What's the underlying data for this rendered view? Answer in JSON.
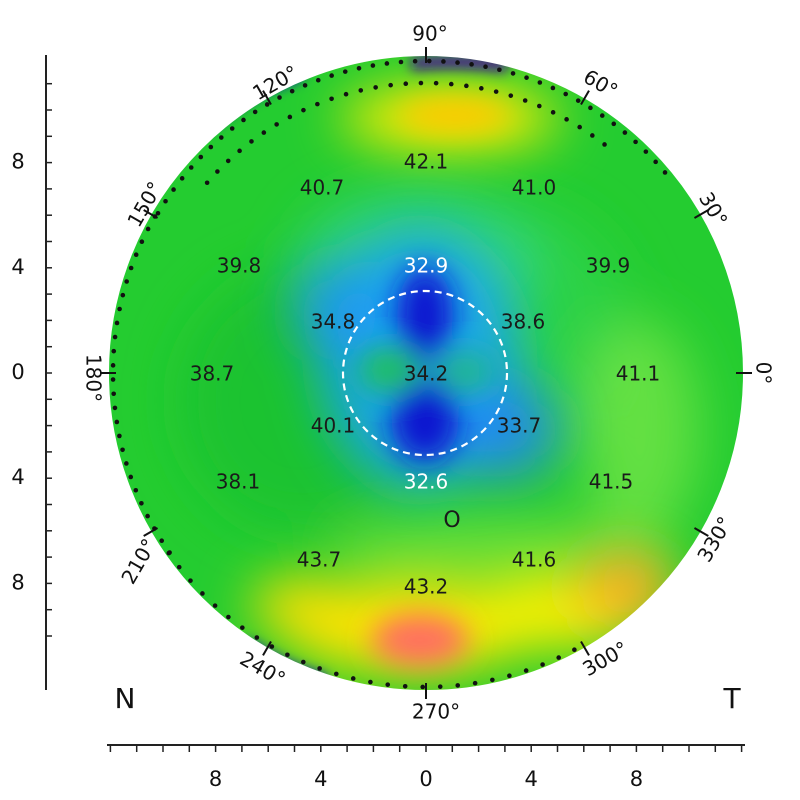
{
  "map": {
    "power_labels": [
      {
        "text": "42.1",
        "tone": "dark"
      },
      {
        "text": "40.7",
        "tone": "dark"
      },
      {
        "text": "41.0",
        "tone": "dark"
      },
      {
        "text": "39.8",
        "tone": "dark"
      },
      {
        "text": "39.9",
        "tone": "dark"
      },
      {
        "text": "32.9",
        "tone": "light"
      },
      {
        "text": "34.8",
        "tone": "dark"
      },
      {
        "text": "38.6",
        "tone": "dark"
      },
      {
        "text": "38.7",
        "tone": "dark"
      },
      {
        "text": "34.2",
        "tone": "dark"
      },
      {
        "text": "41.1",
        "tone": "dark"
      },
      {
        "text": "40.1",
        "tone": "dark"
      },
      {
        "text": "33.7",
        "tone": "dark"
      },
      {
        "text": "38.1",
        "tone": "dark"
      },
      {
        "text": "32.6",
        "tone": "light"
      },
      {
        "text": "41.5",
        "tone": "dark"
      },
      {
        "text": "43.7",
        "tone": "dark"
      },
      {
        "text": "41.6",
        "tone": "dark"
      },
      {
        "text": "43.2",
        "tone": "dark"
      }
    ],
    "angle_labels": [
      "90°",
      "60°",
      "30°",
      "0°",
      "330°",
      "300°",
      "270°",
      "240°",
      "210°",
      "180°",
      "150°",
      "120°"
    ],
    "side_labels": {
      "left": "N",
      "right": "T"
    },
    "x_axis_ticks": [
      "8",
      "4",
      "0",
      "4",
      "8"
    ],
    "y_axis_ticks": [
      "8",
      "4",
      "0",
      "4",
      "8"
    ],
    "pupil_marker": "O",
    "colors": {
      "green": "#22cc33",
      "yellow": "#ffee00",
      "orange": "#ffaa22",
      "red": "#ff6666",
      "blue": "#1e66ff",
      "dark_blue": "#0a10c8",
      "cyan": "#20c8b8"
    }
  }
}
